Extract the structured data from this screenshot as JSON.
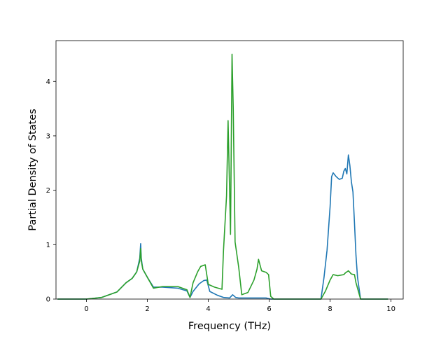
{
  "colors": {
    "series_1": "#1f77b4",
    "series_2": "#2ca02c",
    "axes": "#000000",
    "background": "#ffffff"
  },
  "chart_data": {
    "type": "line",
    "title": "",
    "xlabel": "Frequency (THz)",
    "ylabel": "Partial Density of States",
    "xlim": [
      -1.0,
      10.4
    ],
    "ylim": [
      0,
      4.75
    ],
    "xticks": [
      0,
      2,
      4,
      6,
      8,
      10
    ],
    "xtick_labels": [
      "0",
      "2",
      "4",
      "6",
      "8",
      "10"
    ],
    "yticks": [
      0,
      1,
      2,
      3,
      4
    ],
    "ytick_labels": [
      "0",
      "1",
      "2",
      "3",
      "4"
    ],
    "grid": false,
    "legend": "none",
    "series": [
      {
        "color": "#1f77b4",
        "points": [
          [
            -0.95,
            0.0
          ],
          [
            0.0,
            0.0
          ],
          [
            0.5,
            0.03
          ],
          [
            1.0,
            0.13
          ],
          [
            1.3,
            0.3
          ],
          [
            1.5,
            0.38
          ],
          [
            1.65,
            0.5
          ],
          [
            1.75,
            0.75
          ],
          [
            1.78,
            1.02
          ],
          [
            1.8,
            0.75
          ],
          [
            1.85,
            0.55
          ],
          [
            2.0,
            0.4
          ],
          [
            2.2,
            0.22
          ],
          [
            2.5,
            0.22
          ],
          [
            3.0,
            0.2
          ],
          [
            3.3,
            0.15
          ],
          [
            3.4,
            0.03
          ],
          [
            3.5,
            0.14
          ],
          [
            3.7,
            0.28
          ],
          [
            3.85,
            0.34
          ],
          [
            3.95,
            0.35
          ],
          [
            4.05,
            0.14
          ],
          [
            4.3,
            0.07
          ],
          [
            4.5,
            0.03
          ],
          [
            4.7,
            0.02
          ],
          [
            4.8,
            0.08
          ],
          [
            4.9,
            0.03
          ],
          [
            5.0,
            0.02
          ],
          [
            5.5,
            0.02
          ],
          [
            5.9,
            0.02
          ],
          [
            6.05,
            0.0
          ],
          [
            7.7,
            0.0
          ],
          [
            7.8,
            0.4
          ],
          [
            7.9,
            0.9
          ],
          [
            8.0,
            1.7
          ],
          [
            8.05,
            2.25
          ],
          [
            8.1,
            2.32
          ],
          [
            8.2,
            2.25
          ],
          [
            8.3,
            2.2
          ],
          [
            8.4,
            2.22
          ],
          [
            8.45,
            2.35
          ],
          [
            8.5,
            2.4
          ],
          [
            8.55,
            2.3
          ],
          [
            8.6,
            2.65
          ],
          [
            8.65,
            2.45
          ],
          [
            8.7,
            2.15
          ],
          [
            8.75,
            1.97
          ],
          [
            8.8,
            1.4
          ],
          [
            8.85,
            0.8
          ],
          [
            8.9,
            0.4
          ],
          [
            9.0,
            0.0
          ],
          [
            9.9,
            0.0
          ]
        ]
      },
      {
        "color": "#2ca02c",
        "points": [
          [
            -0.95,
            0.0
          ],
          [
            0.0,
            0.0
          ],
          [
            0.5,
            0.03
          ],
          [
            1.0,
            0.13
          ],
          [
            1.3,
            0.3
          ],
          [
            1.5,
            0.38
          ],
          [
            1.65,
            0.5
          ],
          [
            1.75,
            0.7
          ],
          [
            1.78,
            0.93
          ],
          [
            1.8,
            0.7
          ],
          [
            1.85,
            0.55
          ],
          [
            2.0,
            0.4
          ],
          [
            2.2,
            0.2
          ],
          [
            2.5,
            0.23
          ],
          [
            3.0,
            0.23
          ],
          [
            3.3,
            0.17
          ],
          [
            3.4,
            0.03
          ],
          [
            3.5,
            0.3
          ],
          [
            3.65,
            0.5
          ],
          [
            3.75,
            0.6
          ],
          [
            3.9,
            0.63
          ],
          [
            4.0,
            0.27
          ],
          [
            4.2,
            0.22
          ],
          [
            4.45,
            0.18
          ],
          [
            4.5,
            0.9
          ],
          [
            4.6,
            1.9
          ],
          [
            4.65,
            3.28
          ],
          [
            4.7,
            2.0
          ],
          [
            4.73,
            1.19
          ],
          [
            4.78,
            4.5
          ],
          [
            4.82,
            3.5
          ],
          [
            4.88,
            1.05
          ],
          [
            5.0,
            0.58
          ],
          [
            5.1,
            0.08
          ],
          [
            5.3,
            0.12
          ],
          [
            5.5,
            0.35
          ],
          [
            5.6,
            0.55
          ],
          [
            5.65,
            0.73
          ],
          [
            5.75,
            0.52
          ],
          [
            5.9,
            0.49
          ],
          [
            5.98,
            0.45
          ],
          [
            6.05,
            0.05
          ],
          [
            6.15,
            0.0
          ],
          [
            7.7,
            0.0
          ],
          [
            7.85,
            0.15
          ],
          [
            8.0,
            0.35
          ],
          [
            8.1,
            0.45
          ],
          [
            8.25,
            0.43
          ],
          [
            8.45,
            0.45
          ],
          [
            8.5,
            0.48
          ],
          [
            8.6,
            0.52
          ],
          [
            8.7,
            0.46
          ],
          [
            8.8,
            0.45
          ],
          [
            8.85,
            0.3
          ],
          [
            9.0,
            0.0
          ],
          [
            9.9,
            0.0
          ]
        ]
      }
    ]
  }
}
